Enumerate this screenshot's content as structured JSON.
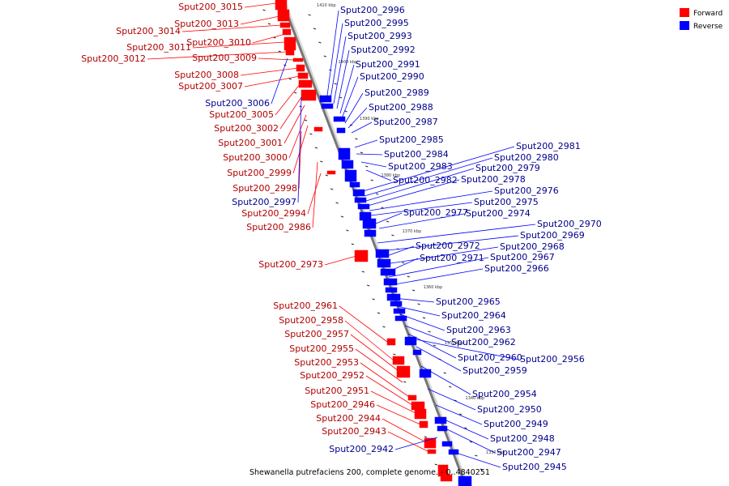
{
  "caption": "Shewanella putrefaciens 200, complete genome. - 0..4840251",
  "legend": [
    {
      "label": "Forward",
      "color": "#ff0000"
    },
    {
      "label": "Reverse",
      "color": "#0000ff"
    }
  ],
  "colors": {
    "forward": "#ff0000",
    "reverse": "#0000ff",
    "backbone": "#777777"
  },
  "kbp_ticks": [
    "1410 kbp",
    "1400 kbp",
    "1390 kbp",
    "1380 kbp",
    "1370 kbp",
    "1360 kbp",
    "1350 kbp",
    "1340 kbp",
    "1330 kbp"
  ],
  "forward_genes": [
    "Sput200_3015",
    "Sput200_3013",
    "Sput200_3014",
    "Sput200_3010",
    "Sput200_3011",
    "Sput200_3012",
    "Sput200_3009",
    "Sput200_3008",
    "Sput200_3007",
    "Sput200_3005",
    "Sput200_3002",
    "Sput200_3001",
    "Sput200_3000",
    "Sput200_2999",
    "Sput200_2998",
    "Sput200_2994",
    "Sput200_2986",
    "Sput200_2973",
    "Sput200_2961",
    "Sput200_2958",
    "Sput200_2957",
    "Sput200_2955",
    "Sput200_2953",
    "Sput200_2952",
    "Sput200_2951",
    "Sput200_2946",
    "Sput200_2944",
    "Sput200_2943"
  ],
  "reverse_genes_left": [
    "Sput200_3006",
    "Sput200_2997",
    "Sput200_2942"
  ],
  "reverse_genes_right": [
    "Sput200_2996",
    "Sput200_2995",
    "Sput200_2993",
    "Sput200_2992",
    "Sput200_2991",
    "Sput200_2990",
    "Sput200_2989",
    "Sput200_2988",
    "Sput200_2987",
    "Sput200_2985",
    "Sput200_2984",
    "Sput200_2983",
    "Sput200_2982",
    "Sput200_2981",
    "Sput200_2980",
    "Sput200_2979",
    "Sput200_2978",
    "Sput200_2976",
    "Sput200_2975",
    "Sput200_2977",
    "Sput200_2974",
    "Sput200_2970",
    "Sput200_2969",
    "Sput200_2972",
    "Sput200_2968",
    "Sput200_2971",
    "Sput200_2967",
    "Sput200_2966",
    "Sput200_2965",
    "Sput200_2964",
    "Sput200_2963",
    "Sput200_2962",
    "Sput200_2960",
    "Sput200_2956",
    "Sput200_2959",
    "Sput200_2954",
    "Sput200_2950",
    "Sput200_2949",
    "Sput200_2948",
    "Sput200_2947",
    "Sput200_2945"
  ]
}
